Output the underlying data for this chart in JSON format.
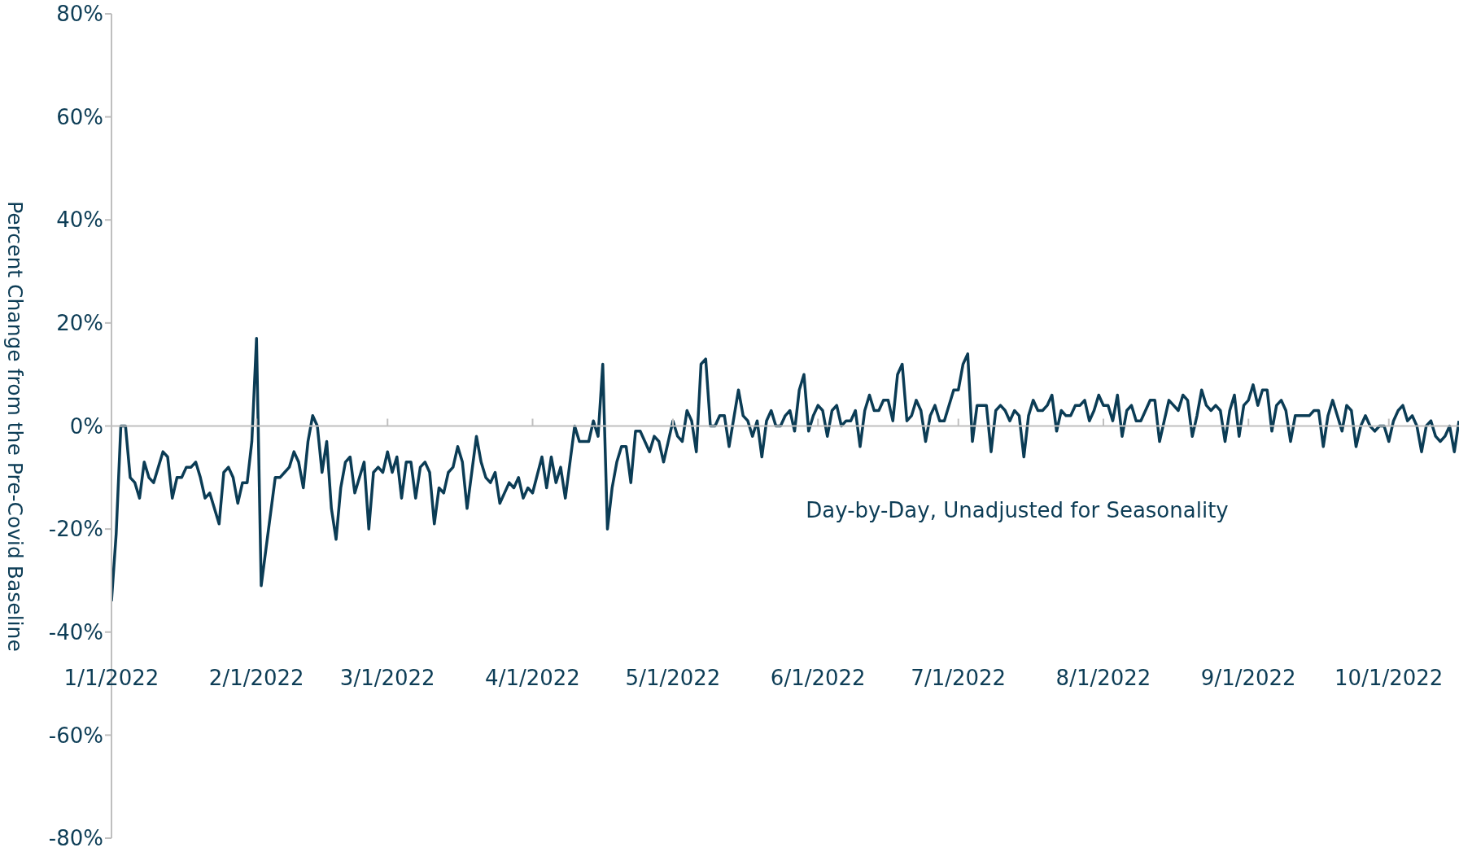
{
  "chart_data": {
    "type": "line",
    "ylabel": "Percent Change from the Pre-Covid Baseline",
    "annotations": [
      "Day-by-Day, Unadjusted for Seasonality"
    ],
    "x": [
      "2022-01-01",
      "2022-01-02",
      "2022-01-03",
      "2022-01-04",
      "2022-01-05",
      "2022-01-06",
      "2022-01-07",
      "2022-01-08",
      "2022-01-09",
      "2022-01-10",
      "2022-01-11",
      "2022-01-12",
      "2022-01-13",
      "2022-01-14",
      "2022-01-15",
      "2022-01-16",
      "2022-01-17",
      "2022-01-18",
      "2022-01-19",
      "2022-01-20",
      "2022-01-21",
      "2022-01-22",
      "2022-01-24",
      "2022-01-25",
      "2022-01-26",
      "2022-01-27",
      "2022-01-28",
      "2022-01-29",
      "2022-01-30",
      "2022-01-31",
      "2022-02-01",
      "2022-02-02",
      "2022-02-05",
      "2022-02-06",
      "2022-02-07",
      "2022-02-08",
      "2022-02-09",
      "2022-02-10",
      "2022-02-11",
      "2022-02-12",
      "2022-02-13",
      "2022-02-14",
      "2022-02-15",
      "2022-02-16",
      "2022-02-17",
      "2022-02-18",
      "2022-02-19",
      "2022-02-20",
      "2022-02-21",
      "2022-02-22",
      "2022-02-23",
      "2022-02-24",
      "2022-02-25",
      "2022-02-26",
      "2022-02-27",
      "2022-02-28",
      "2022-03-01",
      "2022-03-02",
      "2022-03-03",
      "2022-03-04",
      "2022-03-05",
      "2022-03-06",
      "2022-03-07",
      "2022-03-08",
      "2022-03-09",
      "2022-03-10",
      "2022-03-11",
      "2022-03-12",
      "2022-03-13",
      "2022-03-14",
      "2022-03-15",
      "2022-03-16",
      "2022-03-17",
      "2022-03-18",
      "2022-03-20",
      "2022-03-21",
      "2022-03-22",
      "2022-03-23",
      "2022-03-24",
      "2022-03-25",
      "2022-03-27",
      "2022-03-28",
      "2022-03-29",
      "2022-03-30",
      "2022-03-31",
      "2022-04-01",
      "2022-04-03",
      "2022-04-04",
      "2022-04-05",
      "2022-04-06",
      "2022-04-07",
      "2022-04-08",
      "2022-04-10",
      "2022-04-11",
      "2022-04-13",
      "2022-04-14",
      "2022-04-15",
      "2022-04-16",
      "2022-04-17",
      "2022-04-18",
      "2022-04-19",
      "2022-04-20",
      "2022-04-21",
      "2022-04-22",
      "2022-04-23",
      "2022-04-24",
      "2022-04-25",
      "2022-04-26",
      "2022-04-27",
      "2022-04-28",
      "2022-04-29",
      "2022-05-01",
      "2022-05-02",
      "2022-05-03",
      "2022-05-04",
      "2022-05-05",
      "2022-05-06",
      "2022-05-07",
      "2022-05-08",
      "2022-05-09",
      "2022-05-10",
      "2022-05-11",
      "2022-05-12",
      "2022-05-13",
      "2022-05-15",
      "2022-05-16",
      "2022-05-17",
      "2022-05-18",
      "2022-05-19",
      "2022-05-20",
      "2022-05-21",
      "2022-05-22",
      "2022-05-23",
      "2022-05-24",
      "2022-05-25",
      "2022-05-26",
      "2022-05-27",
      "2022-05-28",
      "2022-05-29",
      "2022-05-30",
      "2022-05-31",
      "2022-06-01",
      "2022-06-02",
      "2022-06-03",
      "2022-06-04",
      "2022-06-05",
      "2022-06-06",
      "2022-06-07",
      "2022-06-08",
      "2022-06-09",
      "2022-06-10",
      "2022-06-11",
      "2022-06-12",
      "2022-06-13",
      "2022-06-14",
      "2022-06-15",
      "2022-06-16",
      "2022-06-17",
      "2022-06-18",
      "2022-06-19",
      "2022-06-20",
      "2022-06-21",
      "2022-06-22",
      "2022-06-23",
      "2022-06-24",
      "2022-06-25",
      "2022-06-26",
      "2022-06-27",
      "2022-06-28",
      "2022-06-29",
      "2022-06-30",
      "2022-07-01",
      "2022-07-02",
      "2022-07-03",
      "2022-07-04",
      "2022-07-05",
      "2022-07-06",
      "2022-07-07",
      "2022-07-08",
      "2022-07-09",
      "2022-07-10",
      "2022-07-11",
      "2022-07-12",
      "2022-07-13",
      "2022-07-14",
      "2022-07-15",
      "2022-07-16",
      "2022-07-17",
      "2022-07-18",
      "2022-07-19",
      "2022-07-20",
      "2022-07-21",
      "2022-07-22",
      "2022-07-23",
      "2022-07-24",
      "2022-07-25",
      "2022-07-26",
      "2022-07-27",
      "2022-07-28",
      "2022-07-29",
      "2022-07-30",
      "2022-07-31",
      "2022-08-01",
      "2022-08-02",
      "2022-08-03",
      "2022-08-04",
      "2022-08-05",
      "2022-08-06",
      "2022-08-07",
      "2022-08-08",
      "2022-08-09",
      "2022-08-10",
      "2022-08-11",
      "2022-08-12",
      "2022-08-13",
      "2022-08-14",
      "2022-08-15",
      "2022-08-16",
      "2022-08-17",
      "2022-08-18",
      "2022-08-19",
      "2022-08-20",
      "2022-08-21",
      "2022-08-22",
      "2022-08-23",
      "2022-08-24",
      "2022-08-25",
      "2022-08-26",
      "2022-08-27",
      "2022-08-28",
      "2022-08-29",
      "2022-08-30",
      "2022-08-31",
      "2022-09-01",
      "2022-09-02",
      "2022-09-03",
      "2022-09-04",
      "2022-09-05",
      "2022-09-06",
      "2022-09-07",
      "2022-09-08",
      "2022-09-09",
      "2022-09-10",
      "2022-09-11",
      "2022-09-12",
      "2022-09-13",
      "2022-09-14",
      "2022-09-15",
      "2022-09-16",
      "2022-09-17",
      "2022-09-18",
      "2022-09-19",
      "2022-09-20",
      "2022-09-21",
      "2022-09-22",
      "2022-09-23",
      "2022-09-24",
      "2022-09-25",
      "2022-09-26",
      "2022-09-27",
      "2022-09-28",
      "2022-09-29",
      "2022-09-30",
      "2022-10-01",
      "2022-10-02",
      "2022-10-03",
      "2022-10-04",
      "2022-10-05",
      "2022-10-06",
      "2022-10-07",
      "2022-10-08",
      "2022-10-09",
      "2022-10-10",
      "2022-10-11",
      "2022-10-12",
      "2022-10-13",
      "2022-10-14",
      "2022-10-15",
      "2022-10-16"
    ],
    "values": [
      -34,
      -21,
      0,
      0,
      -10,
      -11,
      -14,
      -7,
      -10,
      -11,
      -8,
      -5,
      -6,
      -14,
      -10,
      -10,
      -8,
      -8,
      -7,
      -10,
      -14,
      -13,
      -19,
      -9,
      -8,
      -10,
      -15,
      -11,
      -11,
      -3,
      17,
      -31,
      -10,
      -10,
      -9,
      -8,
      -5,
      -7,
      -12,
      -3,
      2,
      0,
      -9,
      -3,
      -16,
      -22,
      -12,
      -7,
      -6,
      -13,
      -10,
      -7,
      -20,
      -9,
      -8,
      -9,
      -5,
      -9,
      -6,
      -14,
      -7,
      -7,
      -14,
      -8,
      -7,
      -9,
      -19,
      -12,
      -13,
      -9,
      -8,
      -4,
      -7,
      -16,
      -2,
      -7,
      -10,
      -11,
      -9,
      -15,
      -11,
      -12,
      -10,
      -14,
      -12,
      -13,
      -6,
      -12,
      -6,
      -11,
      -8,
      -14,
      0,
      -3,
      -3,
      1,
      -2,
      12,
      -20,
      -12,
      -7,
      -4,
      -4,
      -11,
      -1,
      -1,
      -3,
      -5,
      -2,
      -3,
      -7,
      1,
      -2,
      -3,
      3,
      1,
      -5,
      12,
      13,
      0,
      0,
      2,
      2,
      -4,
      7,
      2,
      1,
      -2,
      1,
      -6,
      1,
      3,
      0,
      0,
      2,
      3,
      -1,
      7,
      10,
      -1,
      2,
      4,
      3,
      -2,
      3,
      4,
      0,
      1,
      1,
      3,
      -4,
      3,
      6,
      3,
      3,
      5,
      5,
      1,
      10,
      12,
      1,
      2,
      5,
      3,
      -3,
      2,
      4,
      1,
      1,
      4,
      7,
      7,
      12,
      14,
      -3,
      4,
      4,
      4,
      -5,
      3,
      4,
      3,
      1,
      3,
      2,
      -6,
      2,
      5,
      3,
      3,
      4,
      6,
      -1,
      3,
      2,
      2,
      4,
      4,
      5,
      1,
      3,
      6,
      4,
      4,
      1,
      6,
      -2,
      3,
      4,
      1,
      1,
      3,
      5,
      5,
      -3,
      1,
      5,
      4,
      3,
      6,
      5,
      -2,
      2,
      7,
      4,
      3,
      4,
      3,
      -3,
      3,
      6,
      -2,
      4,
      5,
      8,
      4,
      7,
      7,
      -1,
      4,
      5,
      3,
      -3,
      2,
      2,
      2,
      2,
      3,
      3,
      -4,
      2,
      5,
      2,
      -1,
      4,
      3,
      -4,
      0,
      2,
      0,
      -1,
      0,
      0,
      -3,
      1,
      3,
      4,
      1,
      2,
      0,
      -5,
      0,
      1,
      -2,
      -3,
      -2,
      0,
      -5,
      1
    ],
    "color": "#0b3c55",
    "xlim": [
      "2022-01-01",
      "2022-10-16"
    ],
    "xticks": [
      {
        "value": "2022-01-01",
        "label": "1/1/2022"
      },
      {
        "value": "2022-02-01",
        "label": "2/1/2022"
      },
      {
        "value": "2022-03-01",
        "label": "3/1/2022"
      },
      {
        "value": "2022-04-01",
        "label": "4/1/2022"
      },
      {
        "value": "2022-05-01",
        "label": "5/1/2022"
      },
      {
        "value": "2022-06-01",
        "label": "6/1/2022"
      },
      {
        "value": "2022-07-01",
        "label": "7/1/2022"
      },
      {
        "value": "2022-08-01",
        "label": "8/1/2022"
      },
      {
        "value": "2022-09-01",
        "label": "9/1/2022"
      },
      {
        "value": "2022-10-01",
        "label": "10/1/2022"
      }
    ],
    "ylim": [
      -80,
      80
    ],
    "yticks": [
      {
        "value": -80,
        "label": "-80%"
      },
      {
        "value": -60,
        "label": "-60%"
      },
      {
        "value": -40,
        "label": "-40%"
      },
      {
        "value": -20,
        "label": "-20%"
      },
      {
        "value": 0,
        "label": "0%"
      },
      {
        "value": 20,
        "label": "20%"
      },
      {
        "value": 40,
        "label": "40%"
      },
      {
        "value": 60,
        "label": "60%"
      },
      {
        "value": 80,
        "label": "80%"
      }
    ],
    "line_style": "solid",
    "legend": false
  }
}
